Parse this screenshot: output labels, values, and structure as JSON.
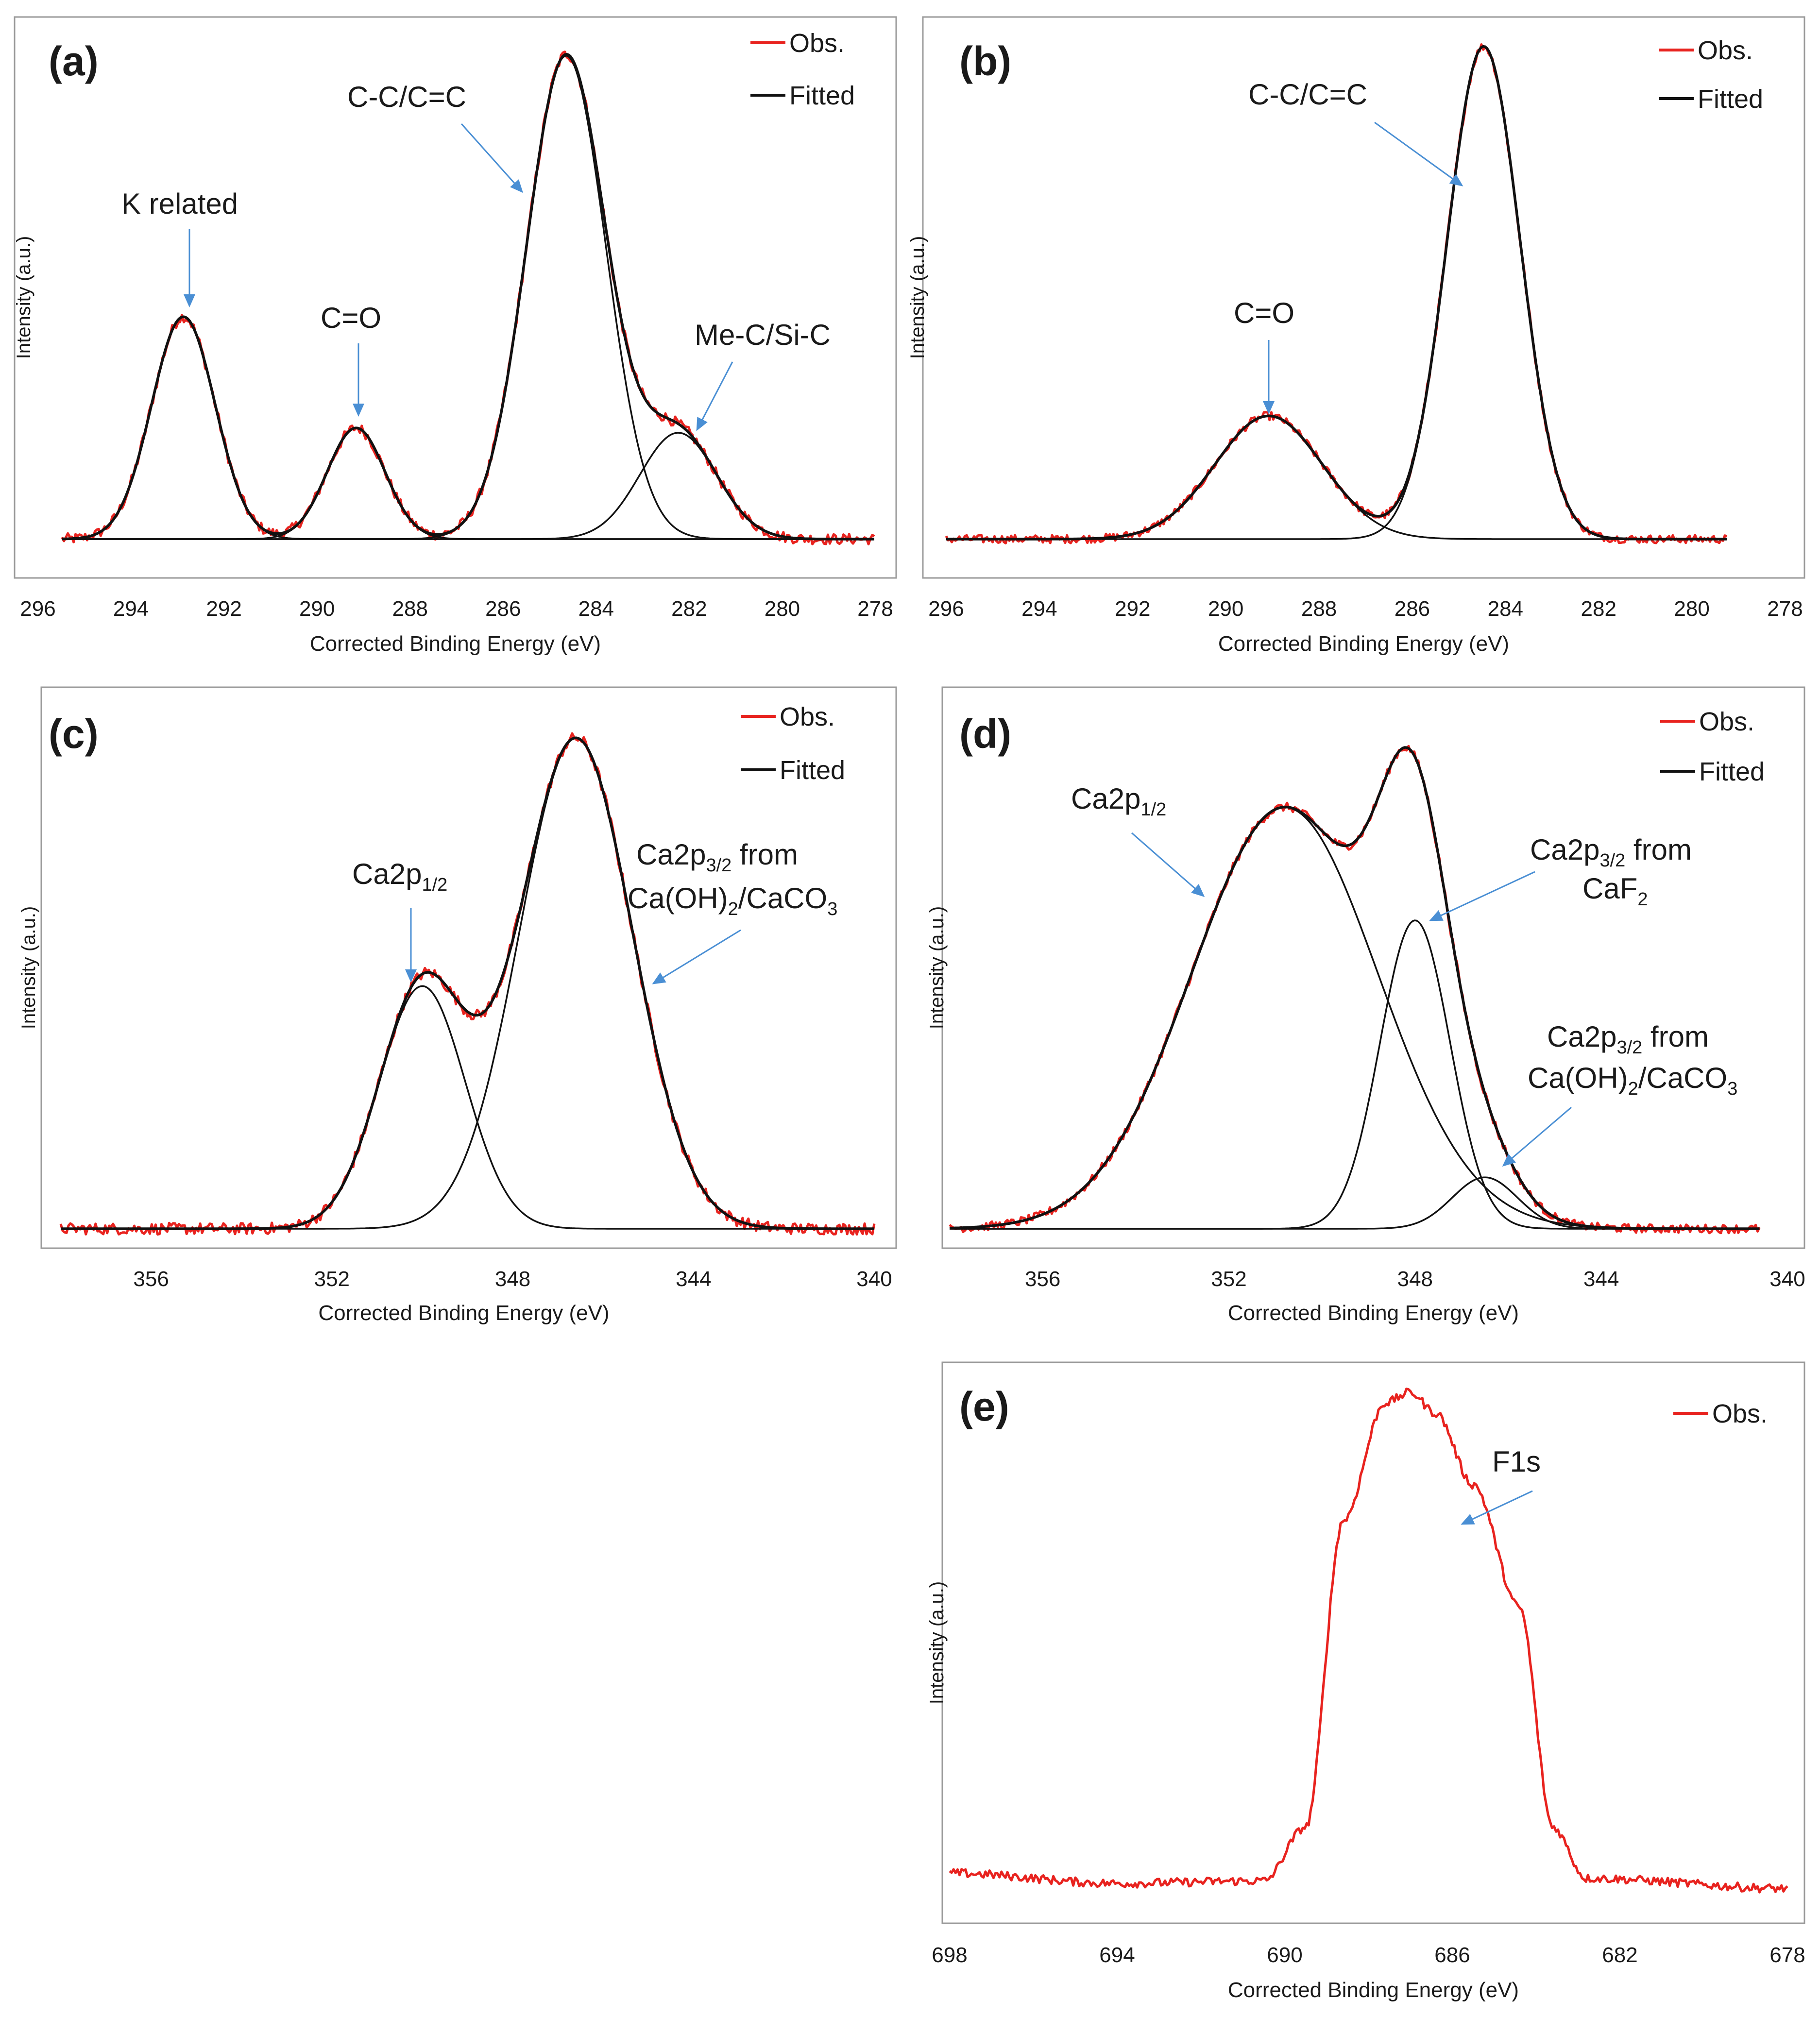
{
  "colors": {
    "obs": "#e8231f",
    "fitted": "#111111",
    "arrow": "#4a8fd4",
    "frame": "#9a9a9a"
  },
  "legend": {
    "obs": "Obs.",
    "fitted": "Fitted"
  },
  "chart_data": [
    {
      "type": "line",
      "letter": "(a)",
      "xlabel": "Corrected Binding Energy (eV)",
      "ylabel": "Intensity (a.u.)",
      "xlim": [
        296,
        278
      ],
      "ylim": [
        0,
        1.06
      ],
      "xticks": [
        "296",
        "294",
        "292",
        "290",
        "288",
        "286",
        "284",
        "282",
        "280",
        "278"
      ],
      "peaks": [
        {
          "center": 292.8,
          "height": 0.46,
          "width": 0.68
        },
        {
          "center": 289.1,
          "height": 0.23,
          "width": 0.62
        },
        {
          "center": 284.6,
          "height": 1.0,
          "width": 0.85
        },
        {
          "center": 282.2,
          "height": 0.22,
          "width": 0.82
        }
      ],
      "obs_range": [
        295.4,
        278
      ],
      "fit_range": [
        295.4,
        278
      ],
      "obs_noise": 0.008,
      "annotations": [
        {
          "parts": [
            {
              "t": "K related"
            }
          ]
        },
        {
          "parts": [
            {
              "t": "C=O"
            }
          ]
        },
        {
          "parts": [
            {
              "t": "C-C/C=C"
            }
          ]
        },
        {
          "parts": [
            {
              "t": "Me-C/Si-C"
            }
          ]
        }
      ]
    },
    {
      "type": "line",
      "letter": "(b)",
      "xlabel": "Corrected Binding Energy (eV)",
      "ylabel": "Intensity (a.u.)",
      "xlim": [
        296,
        278
      ],
      "ylim": [
        0,
        1.04
      ],
      "xticks": [
        "296",
        "294",
        "292",
        "290",
        "288",
        "286",
        "284",
        "282",
        "280",
        "278"
      ],
      "peaks": [
        {
          "center": 289.1,
          "height": 0.25,
          "width": 1.15
        },
        {
          "center": 284.5,
          "height": 1.0,
          "width": 0.78
        }
      ],
      "obs_range": [
        296,
        279.3
      ],
      "fit_range": [
        296,
        279.3
      ],
      "obs_noise": 0.006,
      "annotations": [
        {
          "parts": [
            {
              "t": "C-C/C=C"
            }
          ]
        },
        {
          "parts": [
            {
              "t": "C=O"
            }
          ]
        }
      ]
    },
    {
      "type": "line",
      "letter": "(c)",
      "xlabel": "Corrected Binding Energy (eV)",
      "ylabel": "Intensity (a.u.)",
      "xlim": [
        358,
        340
      ],
      "ylim": [
        0,
        1.03
      ],
      "xticks": [
        "356",
        "352",
        "348",
        "344",
        "340"
      ],
      "xtick_values": [
        356,
        352,
        348,
        344,
        340
      ],
      "peaks": [
        {
          "center": 350.0,
          "height": 0.47,
          "width": 0.95
        },
        {
          "center": 346.6,
          "height": 0.95,
          "width": 1.25
        }
      ],
      "obs_range": [
        358,
        340
      ],
      "fit_range": [
        358,
        340
      ],
      "obs_noise": 0.008,
      "annotations": [
        {
          "parts": [
            {
              "t": "Ca2p"
            },
            {
              "t": "1/2",
              "s": "sub"
            }
          ]
        },
        {
          "parts": [
            {
              "t": "Ca2p"
            },
            {
              "t": "3/2",
              "s": "sub"
            },
            {
              "t": " from"
            }
          ]
        },
        {
          "parts": [
            {
              "t": "Ca(OH)"
            },
            {
              "t": "2",
              "s": "sub"
            },
            {
              "t": "/CaCO"
            },
            {
              "t": "3",
              "s": "sub"
            }
          ]
        }
      ]
    },
    {
      "type": "line",
      "letter": "(d)",
      "xlabel": "Corrected Binding Energy (eV)",
      "ylabel": "Intensity (a.u.)",
      "xlim": [
        358,
        340
      ],
      "ylim": [
        0,
        1.03
      ],
      "xticks": [
        "356",
        "352",
        "348",
        "344",
        "340"
      ],
      "xtick_values": [
        356,
        352,
        348,
        344,
        340
      ],
      "peaks": [
        {
          "center": 350.8,
          "height": 0.82,
          "width": 2.0
        },
        {
          "center": 348.0,
          "height": 0.6,
          "width": 0.75
        },
        {
          "center": 346.5,
          "height": 0.1,
          "width": 0.7
        }
      ],
      "obs_range": [
        358,
        340.6
      ],
      "fit_range": [
        358,
        340.6
      ],
      "obs_noise": 0.006,
      "annotations": [
        {
          "parts": [
            {
              "t": "Ca2p"
            },
            {
              "t": "1/2",
              "s": "sub"
            }
          ]
        },
        {
          "parts": [
            {
              "t": "Ca2p"
            },
            {
              "t": "3/2",
              "s": "sub"
            },
            {
              "t": " from"
            }
          ]
        },
        {
          "parts": [
            {
              "t": "CaF"
            },
            {
              "t": "2",
              "s": "sub"
            }
          ]
        },
        {
          "parts": [
            {
              "t": "Ca2p"
            },
            {
              "t": "3/2",
              "s": "sub"
            },
            {
              "t": " from"
            }
          ]
        },
        {
          "parts": [
            {
              "t": "Ca(OH)"
            },
            {
              "t": "2",
              "s": "sub"
            },
            {
              "t": "/CaCO"
            },
            {
              "t": "3",
              "s": "sub"
            }
          ]
        }
      ]
    },
    {
      "type": "line",
      "letter": "(e)",
      "xlabel": "Corrected Binding Energy (eV)",
      "ylabel": "Intensity (a.u.)",
      "xlim": [
        698,
        678
      ],
      "ylim": [
        0,
        1.04
      ],
      "xticks": [
        "698",
        "694",
        "690",
        "686",
        "682",
        "678"
      ],
      "xtick_values": [
        698,
        694,
        690,
        686,
        682,
        678
      ],
      "obs_points": [
        [
          698,
          0.06
        ],
        [
          694,
          0.04
        ],
        [
          690.5,
          0.045
        ],
        [
          689.5,
          0.15
        ],
        [
          688.6,
          0.75
        ],
        [
          687.6,
          0.98
        ],
        [
          687,
          1.0
        ],
        [
          686.4,
          0.96
        ],
        [
          685.5,
          0.82
        ],
        [
          684.4,
          0.58
        ],
        [
          683.6,
          0.15
        ],
        [
          682.8,
          0.05
        ],
        [
          678,
          0.03
        ]
      ],
      "obs_range": [
        698,
        678
      ],
      "obs_noise": 0.006,
      "legend_only_obs": true,
      "annotations": [
        {
          "parts": [
            {
              "t": "F1s"
            }
          ]
        }
      ]
    }
  ]
}
